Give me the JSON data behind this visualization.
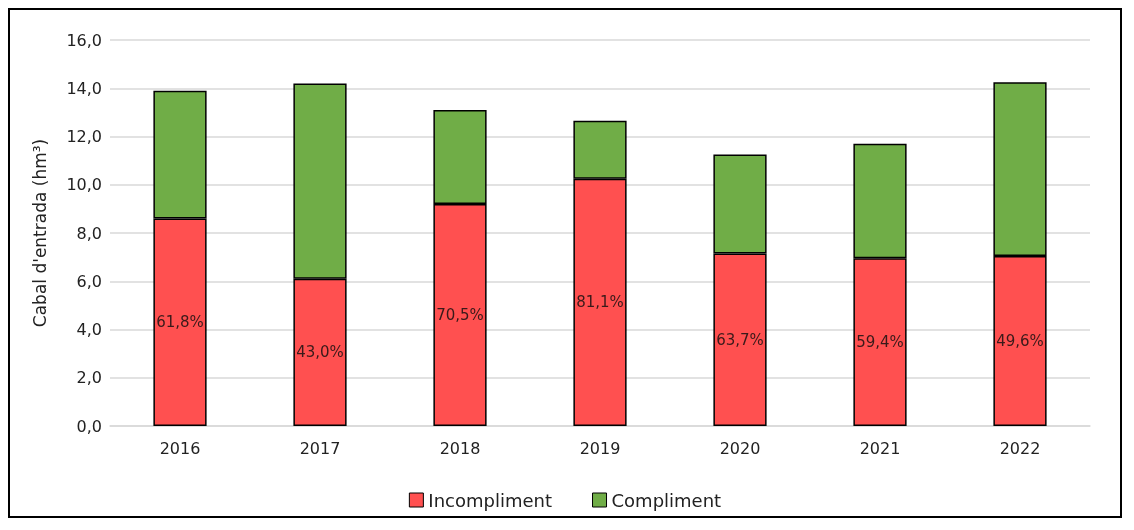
{
  "chart_data": {
    "type": "bar",
    "stacked": true,
    "ylabel": "Cabal d'entrada (hm³)",
    "categories": [
      "2016",
      "2017",
      "2018",
      "2019",
      "2020",
      "2021",
      "2022"
    ],
    "series": [
      {
        "name": "Incompliment",
        "color": "#ff5050",
        "values": [
          8.6,
          6.1,
          9.2,
          10.25,
          7.15,
          6.95,
          7.05
        ]
      },
      {
        "name": "Compliment",
        "color": "#70ad47",
        "values": [
          5.3,
          8.1,
          3.9,
          2.4,
          4.1,
          4.75,
          7.2
        ]
      }
    ],
    "ylim": [
      0,
      16
    ],
    "yticks": [
      {
        "value": 0,
        "label": "0,0"
      },
      {
        "value": 2,
        "label": "2,0"
      },
      {
        "value": 4,
        "label": "4,0"
      },
      {
        "value": 6,
        "label": "6,0"
      },
      {
        "value": 8,
        "label": "8,0"
      },
      {
        "value": 10,
        "label": "10,0"
      },
      {
        "value": 12,
        "label": "12,0"
      },
      {
        "value": 14,
        "label": "14,0"
      },
      {
        "value": 16,
        "label": "16,0"
      }
    ],
    "annotations": [
      "61,8%",
      "43,0%",
      "70,5%",
      "81,1%",
      "63,7%",
      "59,4%",
      "49,6%"
    ],
    "grid": "y",
    "legend": "bottom"
  }
}
